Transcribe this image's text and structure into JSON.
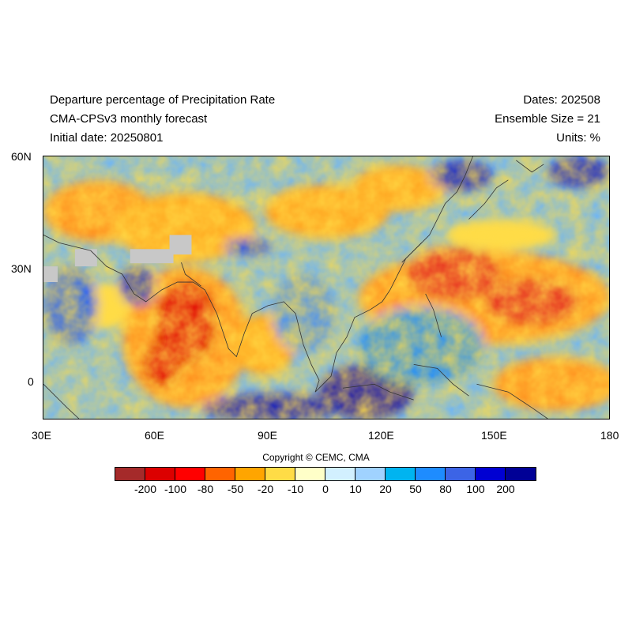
{
  "header": {
    "title_line1": "Departure percentage of Precipitation Rate",
    "title_line2": "CMA-CPSv3 monthly forecast",
    "title_line3": "Initial date: 20250801",
    "dates": "Dates: 202508",
    "ensemble": "Ensemble Size = 21",
    "units": "Units: %"
  },
  "map": {
    "lon_range": [
      30,
      180
    ],
    "lat_range": [
      -10,
      60
    ],
    "lat_ticks": [
      "60N",
      "30N",
      "0"
    ],
    "lon_ticks": [
      "30E",
      "60E",
      "90E",
      "120E",
      "150E",
      "180"
    ],
    "missing_color": "#c8c8c8"
  },
  "colorbar": {
    "colors": [
      "#a52a2a",
      "#dc0000",
      "#ff0000",
      "#ff6400",
      "#ffa500",
      "#ffdc46",
      "#ffffc8",
      "#d2f0ff",
      "#a0d2ff",
      "#00b4f0",
      "#1e8cff",
      "#3c64e6",
      "#0000d2",
      "#000096"
    ],
    "labels": [
      "-200",
      "-100",
      "-80",
      "-50",
      "-20",
      "-10",
      "0",
      "10",
      "20",
      "50",
      "80",
      "100",
      "200"
    ]
  },
  "copyright": "Copyright © CEMC, CMA"
}
